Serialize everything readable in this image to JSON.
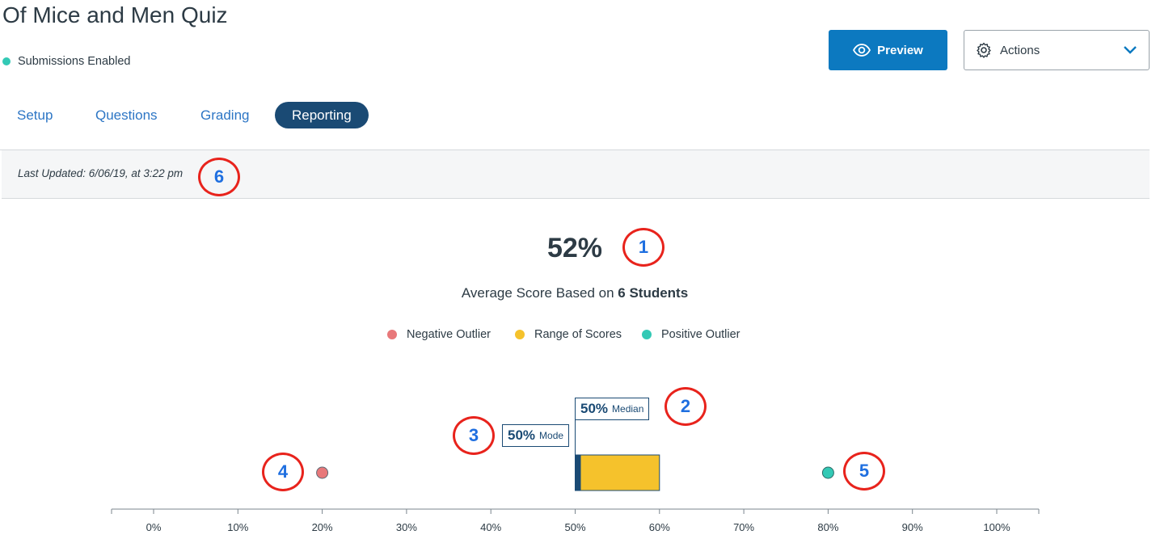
{
  "header": {
    "title": "Of Mice and Men Quiz",
    "status": "Submissions Enabled",
    "preview_label": "Preview",
    "actions_label": "Actions"
  },
  "tabs": [
    {
      "label": "Setup"
    },
    {
      "label": "Questions"
    },
    {
      "label": "Grading"
    },
    {
      "label": "Reporting",
      "active": true
    }
  ],
  "report": {
    "last_updated": "Last Updated: 6/06/19, at 3:22 pm",
    "average": "52%",
    "average_prefix": "Average Score Based on",
    "average_students": "6 Students"
  },
  "legend": [
    {
      "label": "Negative Outlier",
      "color": "#e8787a"
    },
    {
      "label": "Range of Scores",
      "color": "#f5c22c"
    },
    {
      "label": "Positive Outlier",
      "color": "#33c9b5"
    }
  ],
  "callouts": [
    "1",
    "2",
    "3",
    "4",
    "5",
    "6"
  ],
  "chart_data": {
    "type": "box",
    "x_ticks": [
      "0%",
      "10%",
      "20%",
      "30%",
      "40%",
      "50%",
      "60%",
      "70%",
      "80%",
      "90%",
      "100%"
    ],
    "xlim": [
      0,
      100
    ],
    "range_low": 50,
    "range_high": 60,
    "median": {
      "value": 50,
      "label": "50%",
      "text": "Median"
    },
    "mode": {
      "value": 50,
      "label": "50%",
      "text": "Mode"
    },
    "negative_outlier": 20,
    "positive_outlier": 80,
    "colors": {
      "range": "#f5c22c",
      "negative": "#e8787a",
      "positive": "#33c9b5",
      "median": "#1a4a74"
    }
  }
}
